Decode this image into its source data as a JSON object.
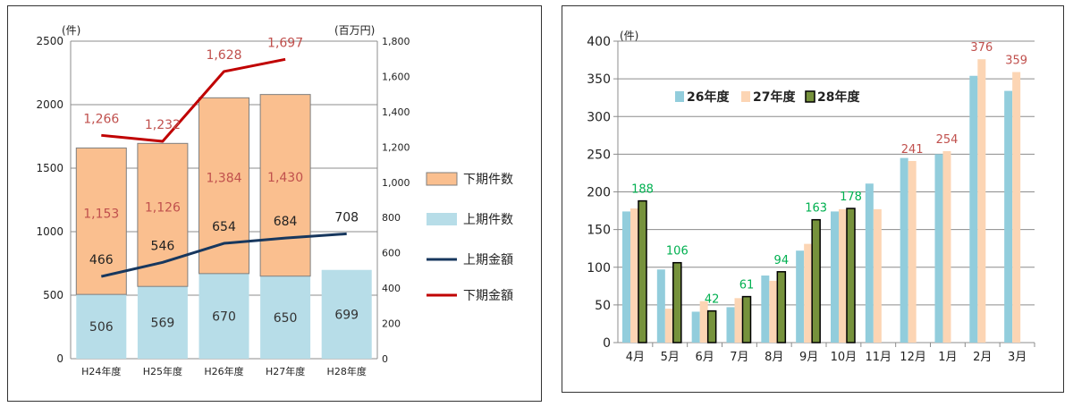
{
  "chart_data": [
    {
      "type": "bar",
      "stacked": true,
      "categories": [
        "H24年度",
        "H25年度",
        "H26年度",
        "H27年度",
        "H28年度"
      ],
      "left_unit": "(件)",
      "right_unit": "(百万円)",
      "ylim": [
        0,
        2500
      ],
      "y2lim": [
        0,
        1800
      ],
      "yticks": [
        "0",
        "500",
        "1000",
        "1500",
        "2000",
        "2500"
      ],
      "y2ticks": [
        "0",
        "200",
        "400",
        "600",
        "800",
        "1,000",
        "1,200",
        "1,400",
        "1,600",
        "1,800"
      ],
      "grid": true,
      "legend_position": "right",
      "series": [
        {
          "name": "下期件数",
          "kind": "bar",
          "axis": "left",
          "color": "#fabf8f",
          "values": [
            1153,
            1126,
            1384,
            1430,
            null
          ]
        },
        {
          "name": "上期件数",
          "kind": "bar",
          "axis": "left",
          "color": "#b7dde8",
          "values": [
            506,
            569,
            670,
            650,
            699
          ]
        },
        {
          "name": "上期金額",
          "kind": "line",
          "axis": "right",
          "color": "#17375e",
          "values": [
            466,
            546,
            654,
            684,
            708
          ]
        },
        {
          "name": "下期金額",
          "kind": "line",
          "axis": "right",
          "color": "#c00000",
          "values": [
            1266,
            1232,
            1628,
            1697,
            null
          ]
        }
      ],
      "data_labels": {
        "upper_count": [
          "1,153",
          "1,126",
          "1,384",
          "1,430"
        ],
        "lower_count": [
          "506",
          "569",
          "670",
          "650",
          "699"
        ],
        "upper_amount": [
          "466",
          "546",
          "654",
          "684",
          "708"
        ],
        "lower_amount": [
          "1,266",
          "1,232",
          "1,628",
          "1,697"
        ]
      }
    },
    {
      "type": "bar",
      "categories": [
        "4月",
        "5月",
        "6月",
        "7月",
        "8月",
        "9月",
        "10月",
        "11月",
        "12月",
        "1月",
        "2月",
        "3月"
      ],
      "unit": "(件)",
      "ylim": [
        0,
        400
      ],
      "yticks": [
        "0",
        "50",
        "100",
        "150",
        "200",
        "250",
        "300",
        "350",
        "400"
      ],
      "grid": true,
      "legend_position": "top-left",
      "series": [
        {
          "name": "26年度",
          "color": "#92cddc",
          "values": [
            174,
            97,
            41,
            47,
            89,
            122,
            174,
            211,
            245,
            250,
            354,
            334
          ]
        },
        {
          "name": "27年度",
          "color": "#fcd5b4",
          "values": [
            178,
            45,
            55,
            59,
            82,
            131,
            177,
            177,
            241,
            254,
            376,
            359
          ]
        },
        {
          "name": "28年度",
          "color": "#76923c",
          "values": [
            188,
            106,
            42,
            61,
            94,
            163,
            178,
            null,
            null,
            null,
            null,
            null
          ]
        }
      ],
      "data_labels": {
        "fy28": [
          "188",
          "106",
          "42",
          "61",
          "94",
          "163",
          "178"
        ],
        "fy27": [
          "241",
          "254",
          "376",
          "359"
        ]
      }
    }
  ]
}
